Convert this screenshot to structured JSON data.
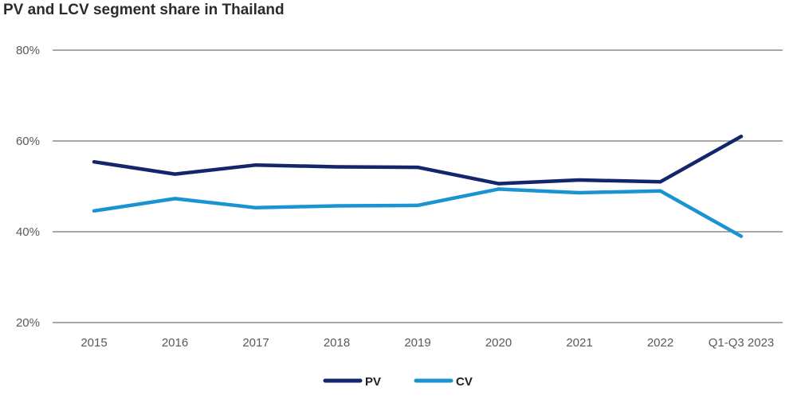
{
  "chart_data": {
    "type": "line",
    "title": "PV and LCV segment share in Thailand",
    "categories": [
      "2015",
      "2016",
      "2017",
      "2018",
      "2019",
      "2020",
      "2021",
      "2022",
      "Q1-Q3 2023"
    ],
    "series": [
      {
        "name": "PV",
        "color": "#14266b",
        "values": [
          55.4,
          52.7,
          54.7,
          54.3,
          54.2,
          50.6,
          51.4,
          51.0,
          61.0
        ]
      },
      {
        "name": "CV",
        "color": "#1a94d1",
        "values": [
          44.6,
          47.3,
          45.3,
          45.7,
          45.8,
          49.4,
          48.6,
          49.0,
          39.0
        ]
      }
    ],
    "y_ticks": [
      20,
      40,
      60,
      80
    ],
    "y_tick_labels": [
      "20%",
      "40%",
      "60%",
      "80%"
    ],
    "ylim": [
      20,
      80
    ],
    "grid": true,
    "legend_position": "bottom-center"
  }
}
